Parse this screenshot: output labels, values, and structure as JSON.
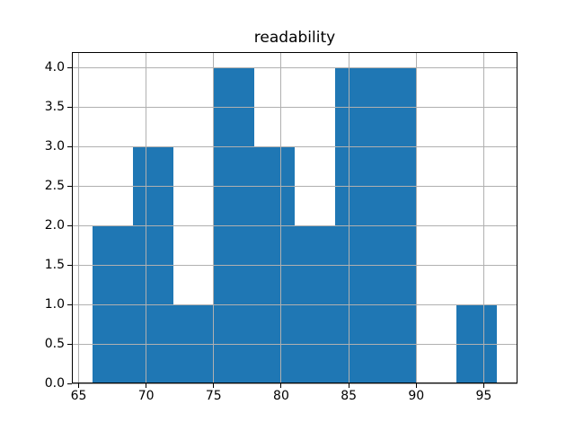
{
  "title": "readability",
  "chart_data": {
    "type": "bar",
    "subtype": "histogram",
    "title": "readability",
    "xlabel": "",
    "ylabel": "",
    "bin_edges": [
      66,
      69,
      72,
      75,
      78,
      81,
      84,
      87,
      90,
      93,
      96
    ],
    "counts": [
      2,
      3,
      1,
      4,
      3,
      2,
      4,
      4,
      0,
      1
    ],
    "xlim": [
      64.5,
      97.5
    ],
    "ylim": [
      0,
      4.2
    ],
    "x_tick_values": [
      65,
      70,
      75,
      80,
      85,
      90,
      95
    ],
    "x_tick_labels": [
      "65",
      "70",
      "75",
      "80",
      "85",
      "90",
      "95"
    ],
    "y_tick_values": [
      0.0,
      0.5,
      1.0,
      1.5,
      2.0,
      2.5,
      3.0,
      3.5,
      4.0
    ],
    "y_tick_labels": [
      "0.0",
      "0.5",
      "1.0",
      "1.5",
      "2.0",
      "2.5",
      "3.0",
      "3.5",
      "4.0"
    ],
    "grid": true,
    "grid_over_bars": true,
    "legend": null,
    "bar_color": "#1f77b4",
    "grid_color": "#b0b0b0",
    "spine_color": "#000000",
    "text_color": "#000000",
    "background_color": "#ffffff"
  }
}
